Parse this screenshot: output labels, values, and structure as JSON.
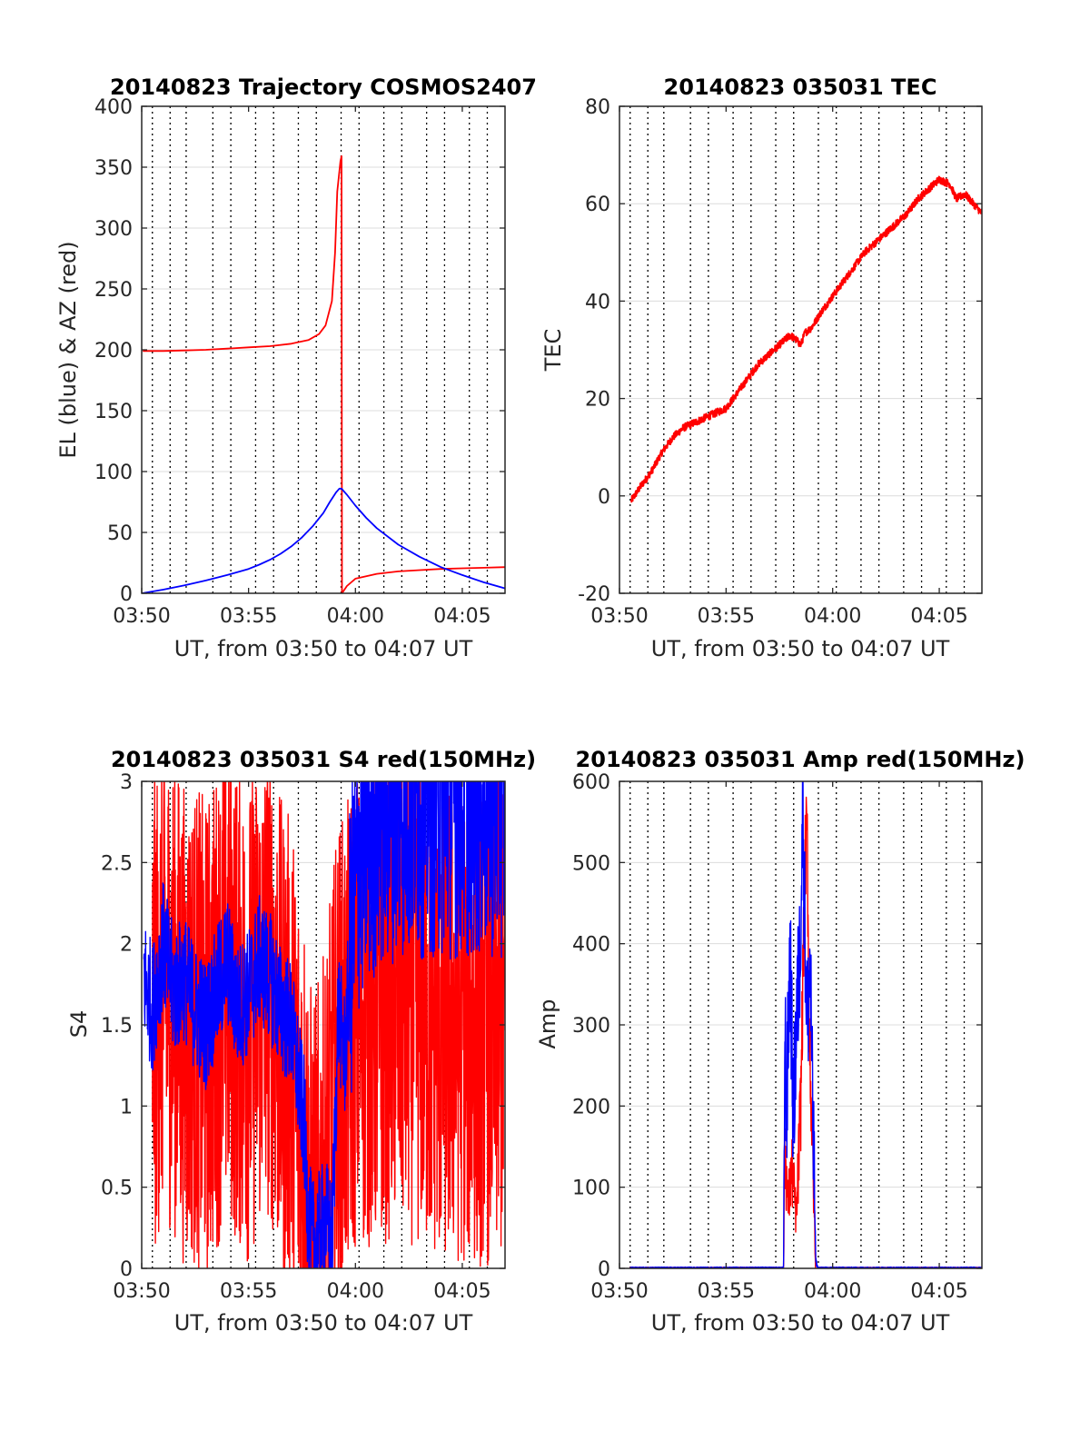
{
  "chart_data": [
    {
      "id": "trajectory",
      "type": "line",
      "title": "20140823 Trajectory COSMOS2407",
      "xlabel": "UT, from 03:50 to 04:07 UT",
      "ylabel": "EL (blue) & AZ (red)",
      "x_unit": "minutes after 03:50 UT",
      "xlim": [
        0,
        17
      ],
      "ylim": [
        0,
        400
      ],
      "xticks": [
        0,
        5,
        10,
        15
      ],
      "xtick_labels": [
        "03:50",
        "03:55",
        "04:00",
        "04:05"
      ],
      "yticks": [
        0,
        50,
        100,
        150,
        200,
        250,
        300,
        350,
        400
      ],
      "ytick_labels": [
        "0",
        "50",
        "100",
        "150",
        "200",
        "250",
        "300",
        "350",
        "400"
      ],
      "grid": true,
      "series": [
        {
          "color": "#ff0000",
          "points": [
            [
              0.05,
              199
            ],
            [
              1,
              199
            ],
            [
              2,
              199.5
            ],
            [
              3,
              200
            ],
            [
              4,
              201
            ],
            [
              5,
              202
            ],
            [
              6,
              203
            ],
            [
              7,
              205
            ],
            [
              7.8,
              208
            ],
            [
              8.3,
              213
            ],
            [
              8.6,
              220
            ],
            [
              8.9,
              240
            ],
            [
              9.05,
              280
            ],
            [
              9.15,
              330
            ],
            [
              9.3,
              355
            ],
            [
              9.35,
              359
            ],
            [
              9.37,
              0
            ],
            [
              9.6,
              6
            ],
            [
              10,
              12
            ],
            [
              11,
              16
            ],
            [
              12,
              18
            ],
            [
              13,
              19
            ],
            [
              14,
              20
            ],
            [
              15,
              20.5
            ],
            [
              16,
              21
            ],
            [
              17,
              21.5
            ]
          ]
        },
        {
          "color": "#0000ff",
          "points": [
            [
              0,
              0
            ],
            [
              1,
              3
            ],
            [
              2,
              6.5
            ],
            [
              3,
              10.5
            ],
            [
              4,
              15
            ],
            [
              5,
              20
            ],
            [
              5.5,
              23.5
            ],
            [
              6,
              27.5
            ],
            [
              6.5,
              32.5
            ],
            [
              7,
              38.5
            ],
            [
              7.5,
              46
            ],
            [
              8,
              55
            ],
            [
              8.5,
              66
            ],
            [
              8.8,
              75
            ],
            [
              9.1,
              83
            ],
            [
              9.25,
              86
            ],
            [
              9.35,
              86
            ],
            [
              9.6,
              81
            ],
            [
              10,
              72
            ],
            [
              10.5,
              62
            ],
            [
              11,
              53.5
            ],
            [
              12,
              40
            ],
            [
              13,
              30
            ],
            [
              14,
              21.5
            ],
            [
              15,
              15
            ],
            [
              16,
              9
            ],
            [
              17,
              4
            ]
          ]
        }
      ]
    },
    {
      "id": "tec",
      "type": "line",
      "title": "20140823 035031 TEC",
      "xlabel": "UT, from 03:50 to 04:07 UT",
      "ylabel": "TEC",
      "x_unit": "minutes after 03:50 UT",
      "xlim": [
        0,
        17
      ],
      "ylim": [
        -20,
        80
      ],
      "xticks": [
        0,
        5,
        10,
        15
      ],
      "xtick_labels": [
        "03:50",
        "03:55",
        "04:00",
        "04:05"
      ],
      "yticks": [
        -20,
        0,
        20,
        40,
        60,
        80
      ],
      "ytick_labels": [
        "-20",
        "0",
        "20",
        "40",
        "60",
        "80"
      ],
      "grid": true,
      "series": [
        {
          "color": "#ff0000",
          "noise": 0.8,
          "points": [
            [
              0.55,
              -1
            ],
            [
              1,
              2
            ],
            [
              1.5,
              5
            ],
            [
              2,
              9
            ],
            [
              2.5,
              12
            ],
            [
              3,
              14
            ],
            [
              3.5,
              15
            ],
            [
              4,
              16
            ],
            [
              4.5,
              17
            ],
            [
              5,
              18
            ],
            [
              5.5,
              21
            ],
            [
              6,
              24
            ],
            [
              6.5,
              27
            ],
            [
              7,
              29
            ],
            [
              7.5,
              31
            ],
            [
              8,
              33
            ],
            [
              8.3,
              32
            ],
            [
              8.5,
              31
            ],
            [
              8.7,
              33.5
            ],
            [
              9,
              34.5
            ],
            [
              9.5,
              38
            ],
            [
              10,
              41
            ],
            [
              10.5,
              44
            ],
            [
              11,
              47
            ],
            [
              11.5,
              50
            ],
            [
              12,
              52
            ],
            [
              12.5,
              54
            ],
            [
              13,
              56
            ],
            [
              13.5,
              58
            ],
            [
              14,
              61
            ],
            [
              14.5,
              63
            ],
            [
              15,
              65
            ],
            [
              15.5,
              64
            ],
            [
              15.8,
              61
            ],
            [
              16.2,
              62
            ],
            [
              16.6,
              60
            ],
            [
              17,
              58
            ]
          ]
        }
      ]
    },
    {
      "id": "s4",
      "type": "line",
      "title": "20140823 035031 S4 red(150MHz)",
      "xlabel": "UT, from 03:50 to 04:07 UT",
      "ylabel": "S4",
      "x_unit": "minutes after 03:50 UT",
      "xlim": [
        0,
        17
      ],
      "ylim": [
        0,
        3
      ],
      "xticks": [
        0,
        5,
        10,
        15
      ],
      "xtick_labels": [
        "03:50",
        "03:55",
        "04:00",
        "04:05"
      ],
      "yticks": [
        0,
        0.5,
        1,
        1.5,
        2,
        2.5,
        3
      ],
      "ytick_labels": [
        "0",
        "0.5",
        "1",
        "1.5",
        "2",
        "2.5",
        "3"
      ],
      "grid": true,
      "series": [
        {
          "color": "#ff0000",
          "noise": 1.5,
          "points": [
            [
              0.5,
              1.5
            ],
            [
              1,
              1.8
            ],
            [
              1.5,
              1.7
            ],
            [
              2,
              1.5
            ],
            [
              2.5,
              1.5
            ],
            [
              3,
              1.4
            ],
            [
              3.5,
              1.6
            ],
            [
              4,
              1.8
            ],
            [
              4.5,
              1.6
            ],
            [
              5,
              1.5
            ],
            [
              5.5,
              1.7
            ],
            [
              6,
              1.8
            ],
            [
              6.5,
              1.4
            ],
            [
              7,
              1.3
            ],
            [
              7.3,
              1.0
            ],
            [
              7.6,
              0.8
            ],
            [
              7.8,
              0.4
            ],
            [
              8,
              0.2
            ],
            [
              8.3,
              0.3
            ],
            [
              8.6,
              0.5
            ],
            [
              8.9,
              0.9
            ],
            [
              9.2,
              1.3
            ],
            [
              9.5,
              1.3
            ],
            [
              10,
              1.6
            ],
            [
              11,
              1.6
            ],
            [
              12,
              1.7
            ],
            [
              13,
              1.6
            ],
            [
              14,
              1.5
            ],
            [
              15,
              1.5
            ],
            [
              16,
              1.5
            ],
            [
              17,
              1.5
            ]
          ]
        },
        {
          "color": "#0000ff",
          "noise": 0.4,
          "points": [
            [
              0.1,
              1.8
            ],
            [
              0.5,
              1.6
            ],
            [
              1,
              2.0
            ],
            [
              1.5,
              1.7
            ],
            [
              2,
              1.8
            ],
            [
              2.5,
              1.6
            ],
            [
              3,
              1.5
            ],
            [
              3.5,
              1.7
            ],
            [
              4,
              1.9
            ],
            [
              4.5,
              1.6
            ],
            [
              5,
              1.7
            ],
            [
              5.5,
              1.9
            ],
            [
              6,
              1.8
            ],
            [
              6.5,
              1.6
            ],
            [
              7,
              1.5
            ],
            [
              7.3,
              1.2
            ],
            [
              7.6,
              0.9
            ],
            [
              7.8,
              0.3
            ],
            [
              8,
              0.15
            ],
            [
              8.3,
              0.2
            ],
            [
              8.6,
              0.3
            ],
            [
              8.9,
              0.15
            ],
            [
              9.2,
              1.6
            ],
            [
              9.5,
              1.3
            ],
            [
              9.8,
              2.0
            ],
            [
              10.2,
              2.6
            ],
            [
              11,
              2.8
            ],
            [
              12,
              2.9
            ],
            [
              13,
              2.9
            ],
            [
              14,
              2.9
            ],
            [
              15,
              2.9
            ],
            [
              16,
              2.9
            ],
            [
              17,
              2.9
            ]
          ]
        }
      ]
    },
    {
      "id": "amp",
      "type": "line",
      "title": "20140823 035031 Amp red(150MHz)",
      "xlabel": "UT, from 03:50 to 04:07 UT",
      "ylabel": "Amp",
      "x_unit": "minutes after 03:50 UT",
      "xlim": [
        0,
        17
      ],
      "ylim": [
        0,
        600
      ],
      "xticks": [
        0,
        5,
        10,
        15
      ],
      "xtick_labels": [
        "03:50",
        "03:55",
        "04:00",
        "04:05"
      ],
      "yticks": [
        0,
        100,
        200,
        300,
        400,
        500,
        600
      ],
      "ytick_labels": [
        "0",
        "100",
        "200",
        "300",
        "400",
        "500",
        "600"
      ],
      "grid": true,
      "series": [
        {
          "color": "#ff0000",
          "noise": 60,
          "points": [
            [
              0.5,
              1
            ],
            [
              7.7,
              1
            ],
            [
              7.75,
              150
            ],
            [
              7.9,
              80
            ],
            [
              8.1,
              120
            ],
            [
              8.3,
              60
            ],
            [
              8.5,
              200
            ],
            [
              8.7,
              500
            ],
            [
              8.8,
              540
            ],
            [
              8.9,
              300
            ],
            [
              9.05,
              150
            ],
            [
              9.15,
              60
            ],
            [
              9.2,
              -10
            ],
            [
              9.3,
              1
            ],
            [
              17,
              1
            ]
          ]
        },
        {
          "color": "#0000ff",
          "noise": 90,
          "points": [
            [
              0.5,
              1
            ],
            [
              7.7,
              1
            ],
            [
              7.75,
              290
            ],
            [
              7.85,
              200
            ],
            [
              8.0,
              400
            ],
            [
              8.15,
              180
            ],
            [
              8.3,
              300
            ],
            [
              8.45,
              380
            ],
            [
              8.6,
              560
            ],
            [
              8.7,
              420
            ],
            [
              8.8,
              300
            ],
            [
              8.95,
              380
            ],
            [
              9.05,
              200
            ],
            [
              9.15,
              100
            ],
            [
              9.2,
              10
            ],
            [
              9.3,
              1
            ],
            [
              17,
              1
            ]
          ]
        }
      ]
    }
  ]
}
